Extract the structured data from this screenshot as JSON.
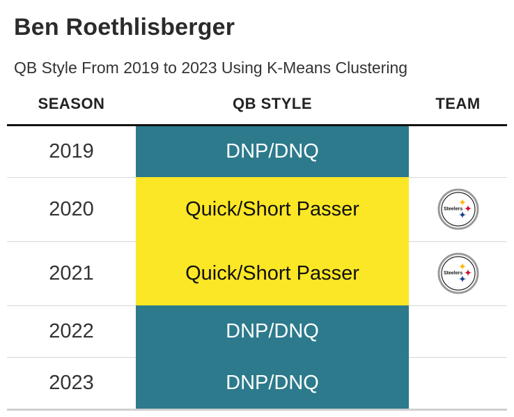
{
  "title": "Ben Roethlisberger",
  "subtitle": "QB Style From 2019 to 2023 Using K-Means Clustering",
  "columns": {
    "season": "SEASON",
    "style": "QB STYLE",
    "team": "TEAM"
  },
  "colors": {
    "dnp": "#2c7a8c",
    "quick_short": "#fce726",
    "dnp_text": "#ffffff",
    "quick_short_text": "#111111"
  },
  "chart_data": {
    "type": "table",
    "title": "Ben Roethlisberger",
    "subtitle": "QB Style From 2019 to 2023 Using K-Means Clustering",
    "columns": [
      "SEASON",
      "QB STYLE",
      "TEAM"
    ],
    "rows": [
      {
        "season": "2019",
        "style": "DNP/DNQ",
        "style_key": "dnp",
        "team": ""
      },
      {
        "season": "2020",
        "style": "Quick/Short Passer",
        "style_key": "quick_short",
        "team": "steelers-logo",
        "logo_text": "Steelers"
      },
      {
        "season": "2021",
        "style": "Quick/Short Passer",
        "style_key": "quick_short",
        "team": "steelers-logo",
        "logo_text": "Steelers"
      },
      {
        "season": "2022",
        "style": "DNP/DNQ",
        "style_key": "dnp",
        "team": ""
      },
      {
        "season": "2023",
        "style": "DNP/DNQ",
        "style_key": "dnp",
        "team": ""
      }
    ]
  }
}
